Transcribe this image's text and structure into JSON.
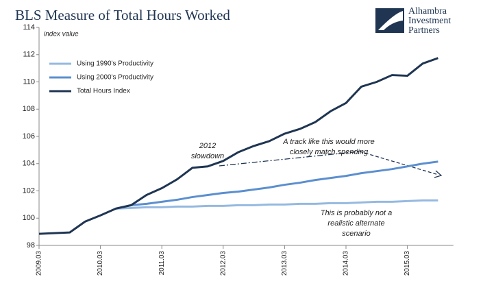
{
  "chart_data": {
    "type": "line",
    "title": "BLS Measure of Total Hours Worked",
    "y_label": "index value",
    "logo": [
      "Alhambra",
      "Investment",
      "Partners"
    ],
    "categories": [
      "2009.03",
      null,
      null,
      null,
      "2010.03",
      null,
      null,
      null,
      "2011.03",
      null,
      null,
      null,
      "2012.03",
      null,
      null,
      null,
      "2013.03",
      null,
      null,
      null,
      "2014.03",
      null,
      null,
      null,
      "2015.03",
      null,
      null
    ],
    "series": [
      {
        "name": "Using 1990's Productivity",
        "color": "#95b9e0",
        "values": [
          null,
          null,
          null,
          null,
          null,
          100.7,
          100.75,
          100.8,
          100.8,
          100.85,
          100.85,
          100.9,
          100.9,
          100.95,
          100.95,
          101.0,
          101.0,
          101.05,
          101.05,
          101.1,
          101.1,
          101.15,
          101.2,
          101.2,
          101.25,
          101.3,
          101.3
        ]
      },
      {
        "name": "Using 2000's Productivity",
        "color": "#5b8fcf",
        "values": [
          null,
          null,
          null,
          null,
          null,
          100.7,
          100.95,
          101.05,
          101.2,
          101.35,
          101.55,
          101.7,
          101.85,
          101.95,
          102.1,
          102.25,
          102.45,
          102.6,
          102.8,
          102.95,
          103.1,
          103.3,
          103.45,
          103.6,
          103.8,
          104.0,
          104.15
        ]
      },
      {
        "name": "Total Hours Index",
        "color": "#1f3552",
        "values": [
          98.85,
          98.9,
          98.95,
          99.75,
          100.2,
          100.7,
          100.95,
          101.7,
          102.2,
          102.85,
          103.7,
          103.8,
          104.2,
          104.85,
          105.3,
          105.65,
          106.2,
          106.55,
          107.05,
          107.85,
          108.45,
          109.65,
          110.0,
          110.5,
          110.45,
          111.35,
          111.75
        ]
      }
    ],
    "ylim": [
      98,
      114
    ],
    "yticks": [
      98,
      100,
      102,
      104,
      106,
      108,
      110,
      112,
      114
    ],
    "grid": false,
    "legend": "upper left",
    "annotations": [
      {
        "lines": [
          "2012",
          "slowdown"
        ]
      },
      {
        "lines": [
          "A track like this would more",
          "closely match spending"
        ]
      },
      {
        "lines": [
          "This is probably not a",
          "realistic alternate",
          "scenario"
        ]
      }
    ]
  }
}
